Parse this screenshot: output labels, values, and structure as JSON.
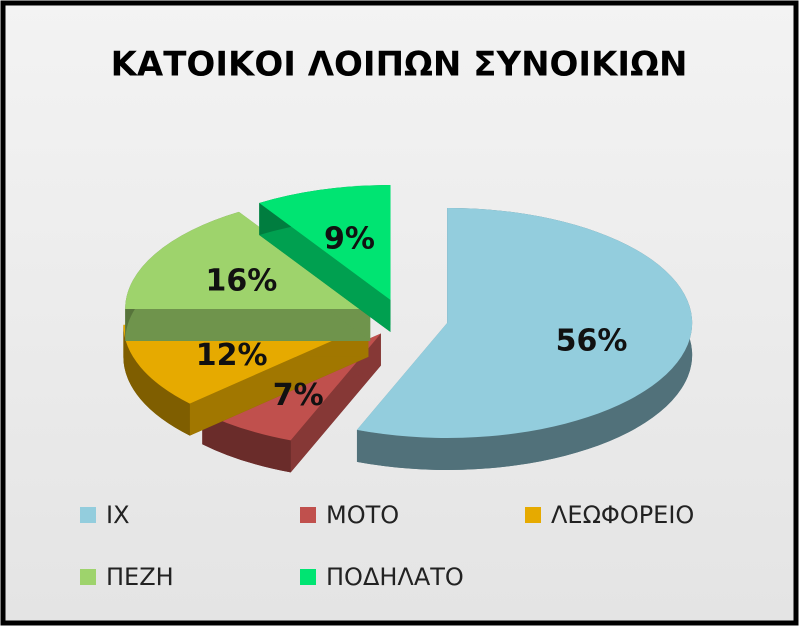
{
  "chart_data": {
    "type": "pie3d",
    "title": "ΚΑΤΟΙΚΟΙ ΛΟΙΠΩΝ ΣΥΝΟΙΚΙΩΝ",
    "categories": [
      "ΙΧ",
      "ΜΟΤΟ",
      "ΛΕΩΦΟΡΕΙΟ",
      "ΠΕΖΗ",
      "ΠΟΔΗΛΑΤΟ"
    ],
    "values": [
      56,
      7,
      12,
      16,
      9
    ],
    "value_labels": [
      "56%",
      "7%",
      "12%",
      "16%",
      "9%"
    ],
    "colors": [
      "#93cddd",
      "#c0504d",
      "#e6aa00",
      "#9ed36c",
      "#00e472"
    ],
    "legend": "bottom"
  }
}
